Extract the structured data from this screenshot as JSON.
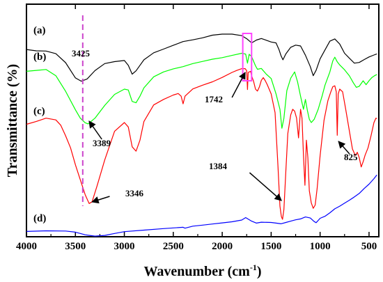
{
  "chart_data": {
    "type": "line",
    "title": "",
    "xlabel": "Wavenumber (cm",
    "xlabel_sup": "-1",
    "xlabel_end": ")",
    "ylabel": "Transmittance (%)",
    "xlim": [
      4000,
      400
    ],
    "x_reversed": true,
    "xticks": [
      4000,
      3500,
      3000,
      2500,
      2000,
      1500,
      1000,
      500
    ],
    "y_ticks_shown": false,
    "grid": false,
    "series": [
      {
        "name": "(a)",
        "color": "#000000",
        "points": [
          [
            4000,
            0.832
          ],
          [
            3900,
            0.826
          ],
          [
            3800,
            0.825
          ],
          [
            3700,
            0.813
          ],
          [
            3600,
            0.772
          ],
          [
            3500,
            0.703
          ],
          [
            3440,
            0.688
          ],
          [
            3380,
            0.698
          ],
          [
            3300,
            0.736
          ],
          [
            3200,
            0.768
          ],
          [
            3100,
            0.777
          ],
          [
            3000,
            0.782
          ],
          [
            2960,
            0.76
          ],
          [
            2920,
            0.72
          ],
          [
            2880,
            0.735
          ],
          [
            2840,
            0.76
          ],
          [
            2800,
            0.785
          ],
          [
            2700,
            0.817
          ],
          [
            2600,
            0.834
          ],
          [
            2500,
            0.851
          ],
          [
            2400,
            0.868
          ],
          [
            2300,
            0.876
          ],
          [
            2200,
            0.885
          ],
          [
            2100,
            0.897
          ],
          [
            2000,
            0.902
          ],
          [
            1900,
            0.902
          ],
          [
            1800,
            0.895
          ],
          [
            1750,
            0.881
          ],
          [
            1700,
            0.862
          ],
          [
            1650,
            0.875
          ],
          [
            1600,
            0.882
          ],
          [
            1550,
            0.874
          ],
          [
            1500,
            0.866
          ],
          [
            1450,
            0.862
          ],
          [
            1420,
            0.832
          ],
          [
            1400,
            0.805
          ],
          [
            1380,
            0.785
          ],
          [
            1350,
            0.812
          ],
          [
            1300,
            0.842
          ],
          [
            1250,
            0.852
          ],
          [
            1200,
            0.848
          ],
          [
            1150,
            0.806
          ],
          [
            1100,
            0.754
          ],
          [
            1070,
            0.713
          ],
          [
            1040,
            0.738
          ],
          [
            1000,
            0.79
          ],
          [
            950,
            0.83
          ],
          [
            900,
            0.87
          ],
          [
            850,
            0.88
          ],
          [
            800,
            0.857
          ],
          [
            750,
            0.815
          ],
          [
            700,
            0.792
          ],
          [
            650,
            0.77
          ],
          [
            600,
            0.773
          ],
          [
            550,
            0.786
          ],
          [
            500,
            0.798
          ],
          [
            450,
            0.807
          ],
          [
            420,
            0.812
          ]
        ]
      },
      {
        "name": "(b)",
        "color": "#00ff00",
        "points": [
          [
            4000,
            0.733
          ],
          [
            3900,
            0.737
          ],
          [
            3800,
            0.741
          ],
          [
            3700,
            0.713
          ],
          [
            3600,
            0.642
          ],
          [
            3500,
            0.558
          ],
          [
            3450,
            0.52
          ],
          [
            3400,
            0.499
          ],
          [
            3370,
            0.494
          ],
          [
            3300,
            0.52
          ],
          [
            3200,
            0.578
          ],
          [
            3100,
            0.628
          ],
          [
            3000,
            0.652
          ],
          [
            2960,
            0.648
          ],
          [
            2920,
            0.596
          ],
          [
            2880,
            0.59
          ],
          [
            2840,
            0.62
          ],
          [
            2800,
            0.658
          ],
          [
            2700,
            0.708
          ],
          [
            2600,
            0.73
          ],
          [
            2500,
            0.744
          ],
          [
            2400,
            0.754
          ],
          [
            2300,
            0.768
          ],
          [
            2200,
            0.778
          ],
          [
            2100,
            0.788
          ],
          [
            2000,
            0.795
          ],
          [
            1900,
            0.805
          ],
          [
            1800,
            0.815
          ],
          [
            1760,
            0.811
          ],
          [
            1742,
            0.77
          ],
          [
            1725,
            0.81
          ],
          [
            1700,
            0.8
          ],
          [
            1660,
            0.758
          ],
          [
            1640,
            0.742
          ],
          [
            1600,
            0.746
          ],
          [
            1550,
            0.72
          ],
          [
            1500,
            0.7
          ],
          [
            1450,
            0.63
          ],
          [
            1410,
            0.56
          ],
          [
            1390,
            0.474
          ],
          [
            1370,
            0.52
          ],
          [
            1340,
            0.645
          ],
          [
            1300,
            0.702
          ],
          [
            1260,
            0.73
          ],
          [
            1230,
            0.685
          ],
          [
            1200,
            0.62
          ],
          [
            1170,
            0.56
          ],
          [
            1150,
            0.605
          ],
          [
            1130,
            0.555
          ],
          [
            1110,
            0.515
          ],
          [
            1090,
            0.5
          ],
          [
            1060,
            0.515
          ],
          [
            1020,
            0.56
          ],
          [
            980,
            0.62
          ],
          [
            950,
            0.67
          ],
          [
            900,
            0.73
          ],
          [
            870,
            0.78
          ],
          [
            850,
            0.797
          ],
          [
            825,
            0.776
          ],
          [
            800,
            0.762
          ],
          [
            750,
            0.74
          ],
          [
            700,
            0.712
          ],
          [
            660,
            0.68
          ],
          [
            630,
            0.66
          ],
          [
            600,
            0.665
          ],
          [
            560,
            0.69
          ],
          [
            530,
            0.672
          ],
          [
            500,
            0.69
          ],
          [
            470,
            0.705
          ],
          [
            440,
            0.714
          ],
          [
            420,
            0.718
          ]
        ]
      },
      {
        "name": "(c)",
        "color": "#ff0000",
        "points": [
          [
            4000,
            0.492
          ],
          [
            3900,
            0.505
          ],
          [
            3800,
            0.52
          ],
          [
            3700,
            0.512
          ],
          [
            3650,
            0.488
          ],
          [
            3600,
            0.44
          ],
          [
            3550,
            0.385
          ],
          [
            3500,
            0.308
          ],
          [
            3450,
            0.24
          ],
          [
            3400,
            0.172
          ],
          [
            3360,
            0.132
          ],
          [
            3330,
            0.14
          ],
          [
            3280,
            0.21
          ],
          [
            3200,
            0.33
          ],
          [
            3100,
            0.46
          ],
          [
            3000,
            0.5
          ],
          [
            2960,
            0.48
          ],
          [
            2920,
            0.39
          ],
          [
            2880,
            0.37
          ],
          [
            2840,
            0.42
          ],
          [
            2800,
            0.505
          ],
          [
            2700,
            0.58
          ],
          [
            2600,
            0.605
          ],
          [
            2500,
            0.625
          ],
          [
            2450,
            0.632
          ],
          [
            2420,
            0.62
          ],
          [
            2400,
            0.585
          ],
          [
            2380,
            0.62
          ],
          [
            2300,
            0.653
          ],
          [
            2200,
            0.67
          ],
          [
            2100,
            0.685
          ],
          [
            2000,
            0.705
          ],
          [
            1900,
            0.728
          ],
          [
            1850,
            0.737
          ],
          [
            1800,
            0.745
          ],
          [
            1765,
            0.745
          ],
          [
            1750,
            0.735
          ],
          [
            1742,
            0.65
          ],
          [
            1735,
            0.728
          ],
          [
            1710,
            0.733
          ],
          [
            1700,
            0.712
          ],
          [
            1680,
            0.688
          ],
          [
            1660,
            0.652
          ],
          [
            1640,
            0.643
          ],
          [
            1620,
            0.662
          ],
          [
            1600,
            0.692
          ],
          [
            1580,
            0.704
          ],
          [
            1560,
            0.69
          ],
          [
            1540,
            0.672
          ],
          [
            1500,
            0.63
          ],
          [
            1460,
            0.545
          ],
          [
            1430,
            0.3
          ],
          [
            1410,
            0.12
          ],
          [
            1395,
            0.072
          ],
          [
            1384,
            0.06
          ],
          [
            1370,
            0.105
          ],
          [
            1350,
            0.28
          ],
          [
            1330,
            0.45
          ],
          [
            1300,
            0.535
          ],
          [
            1280,
            0.56
          ],
          [
            1260,
            0.552
          ],
          [
            1240,
            0.52
          ],
          [
            1220,
            0.43
          ],
          [
            1200,
            0.56
          ],
          [
            1185,
            0.52
          ],
          [
            1170,
            0.35
          ],
          [
            1155,
            0.215
          ],
          [
            1140,
            0.42
          ],
          [
            1125,
            0.34
          ],
          [
            1110,
            0.19
          ],
          [
            1090,
            0.135
          ],
          [
            1070,
            0.11
          ],
          [
            1050,
            0.125
          ],
          [
            1030,
            0.2
          ],
          [
            1000,
            0.35
          ],
          [
            960,
            0.51
          ],
          [
            920,
            0.6
          ],
          [
            890,
            0.64
          ],
          [
            870,
            0.663
          ],
          [
            850,
            0.667
          ],
          [
            835,
            0.64
          ],
          [
            825,
            0.442
          ],
          [
            815,
            0.63
          ],
          [
            800,
            0.652
          ],
          [
            770,
            0.64
          ],
          [
            740,
            0.565
          ],
          [
            700,
            0.46
          ],
          [
            670,
            0.38
          ],
          [
            640,
            0.35
          ],
          [
            620,
            0.365
          ],
          [
            600,
            0.34
          ],
          [
            580,
            0.298
          ],
          [
            560,
            0.322
          ],
          [
            540,
            0.352
          ],
          [
            510,
            0.385
          ],
          [
            480,
            0.44
          ],
          [
            450,
            0.5
          ],
          [
            430,
            0.52
          ],
          [
            420,
            0.518
          ]
        ]
      },
      {
        "name": "(d)",
        "color": "#0000ff",
        "points": [
          [
            4000,
            0.005
          ],
          [
            3800,
            0.008
          ],
          [
            3600,
            0.007
          ],
          [
            3500,
            0.002
          ],
          [
            3400,
            -0.01
          ],
          [
            3300,
            -0.016
          ],
          [
            3200,
            -0.013
          ],
          [
            3100,
            -0.004
          ],
          [
            3000,
            0.004
          ],
          [
            2800,
            0.011
          ],
          [
            2600,
            0.018
          ],
          [
            2400,
            0.024
          ],
          [
            2380,
            0.02
          ],
          [
            2300,
            0.029
          ],
          [
            2200,
            0.034
          ],
          [
            2100,
            0.039
          ],
          [
            2000,
            0.044
          ],
          [
            1900,
            0.049
          ],
          [
            1800,
            0.057
          ],
          [
            1760,
            0.068
          ],
          [
            1700,
            0.052
          ],
          [
            1650,
            0.043
          ],
          [
            1600,
            0.047
          ],
          [
            1500,
            0.046
          ],
          [
            1450,
            0.043
          ],
          [
            1400,
            0.04
          ],
          [
            1350,
            0.046
          ],
          [
            1300,
            0.052
          ],
          [
            1250,
            0.058
          ],
          [
            1200,
            0.062
          ],
          [
            1150,
            0.071
          ],
          [
            1100,
            0.066
          ],
          [
            1060,
            0.05
          ],
          [
            1040,
            0.045
          ],
          [
            1020,
            0.055
          ],
          [
            1000,
            0.065
          ],
          [
            950,
            0.074
          ],
          [
            900,
            0.09
          ],
          [
            850,
            0.108
          ],
          [
            800,
            0.12
          ],
          [
            750,
            0.134
          ],
          [
            700,
            0.147
          ],
          [
            650,
            0.162
          ],
          [
            600,
            0.178
          ],
          [
            550,
            0.2
          ],
          [
            500,
            0.22
          ],
          [
            450,
            0.245
          ],
          [
            420,
            0.262
          ]
        ]
      }
    ],
    "annotations": [
      "3425",
      "1742",
      "3389",
      "3346",
      "1384",
      "825"
    ],
    "reference_line": {
      "x": 3425,
      "color": "#cc44cc",
      "style": "dashed"
    },
    "highlight_box": {
      "x_range": [
        1790,
        1700
      ],
      "color": "#ff44ff"
    }
  }
}
